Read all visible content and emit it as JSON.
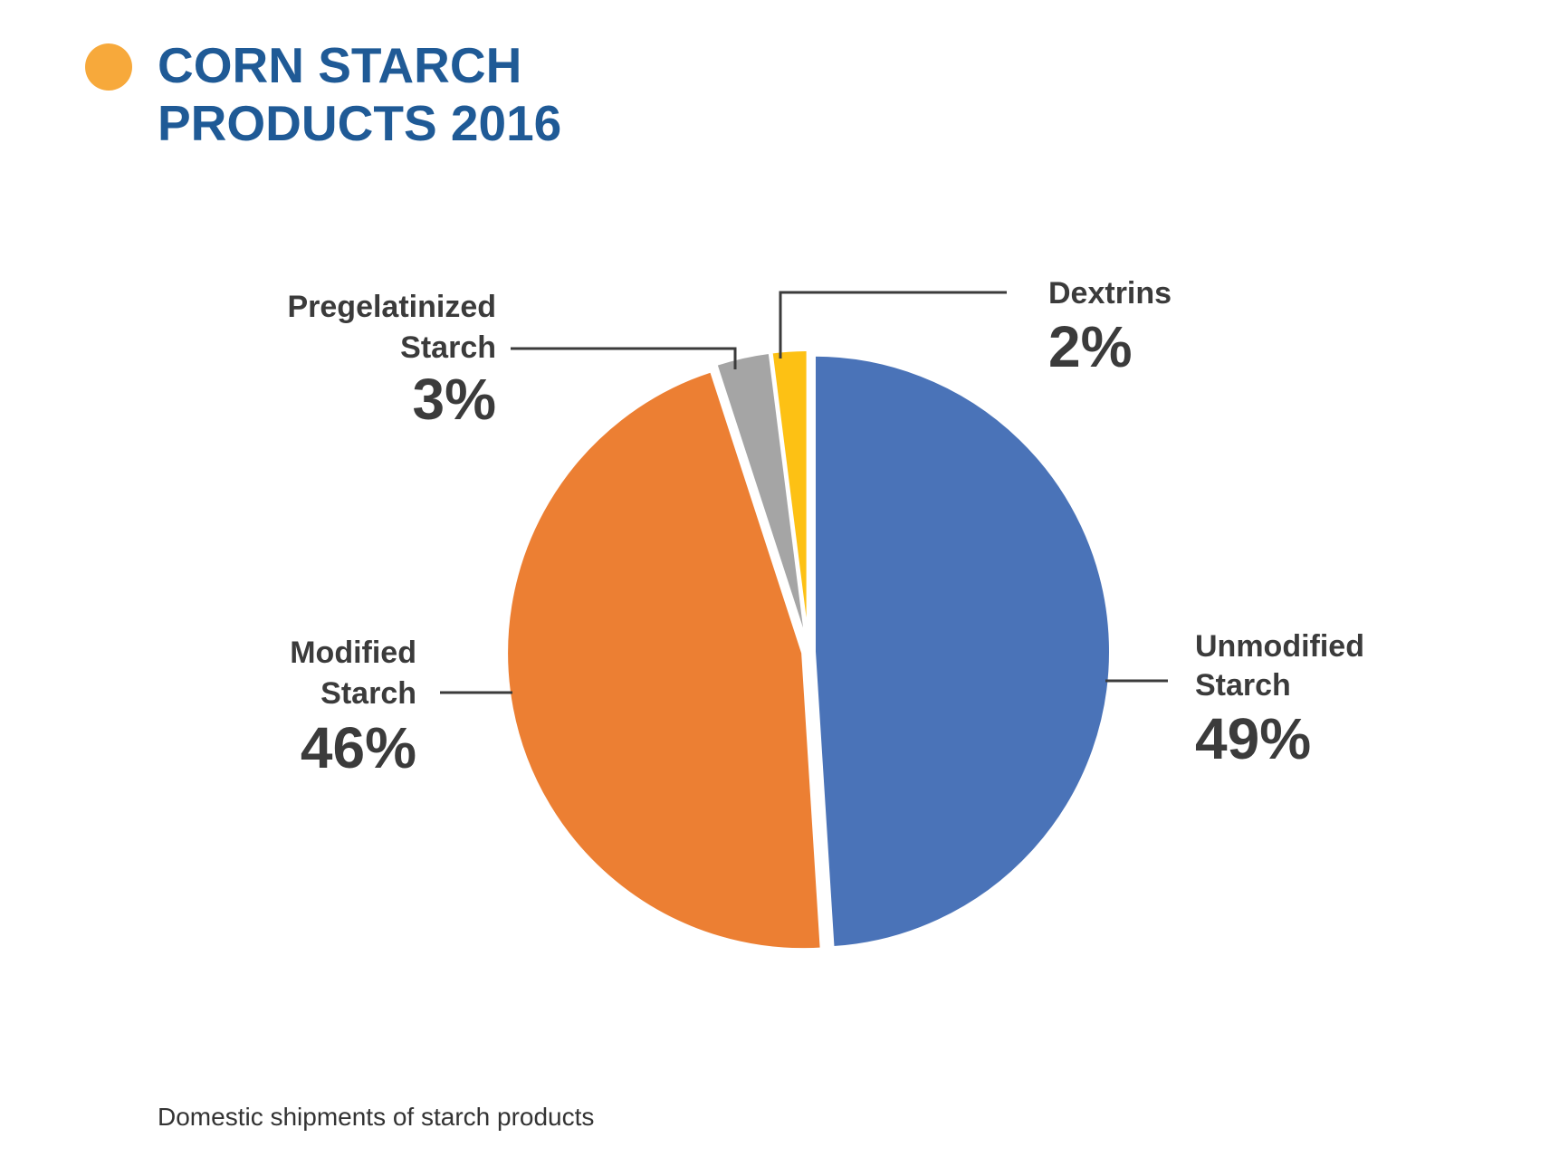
{
  "title": {
    "line1": "CORN STARCH",
    "line2": "PRODUCTS 2016"
  },
  "colors": {
    "title": "#1f5a96",
    "title_dot": "#f7a93b",
    "leader": "#3b3b3b",
    "label": "#3b3b3b"
  },
  "chart_data": {
    "type": "pie",
    "slices": [
      {
        "name_lines": [
          "Unmodified",
          "Starch"
        ],
        "value": 49,
        "label": "49%",
        "color": "#4a73b8"
      },
      {
        "name_lines": [
          "Modified",
          "Starch"
        ],
        "value": 46,
        "label": "46%",
        "color": "#ec7f33"
      },
      {
        "name_lines": [
          "Pregelatinized",
          "Starch"
        ],
        "value": 3,
        "label": "3%",
        "color": "#a5a5a5"
      },
      {
        "name_lines": [
          "Dextrins"
        ],
        "value": 2,
        "label": "2%",
        "color": "#fdc114"
      }
    ],
    "start": "12 o'clock",
    "direction": "clockwise"
  },
  "footnote": "Domestic shipments of starch products"
}
